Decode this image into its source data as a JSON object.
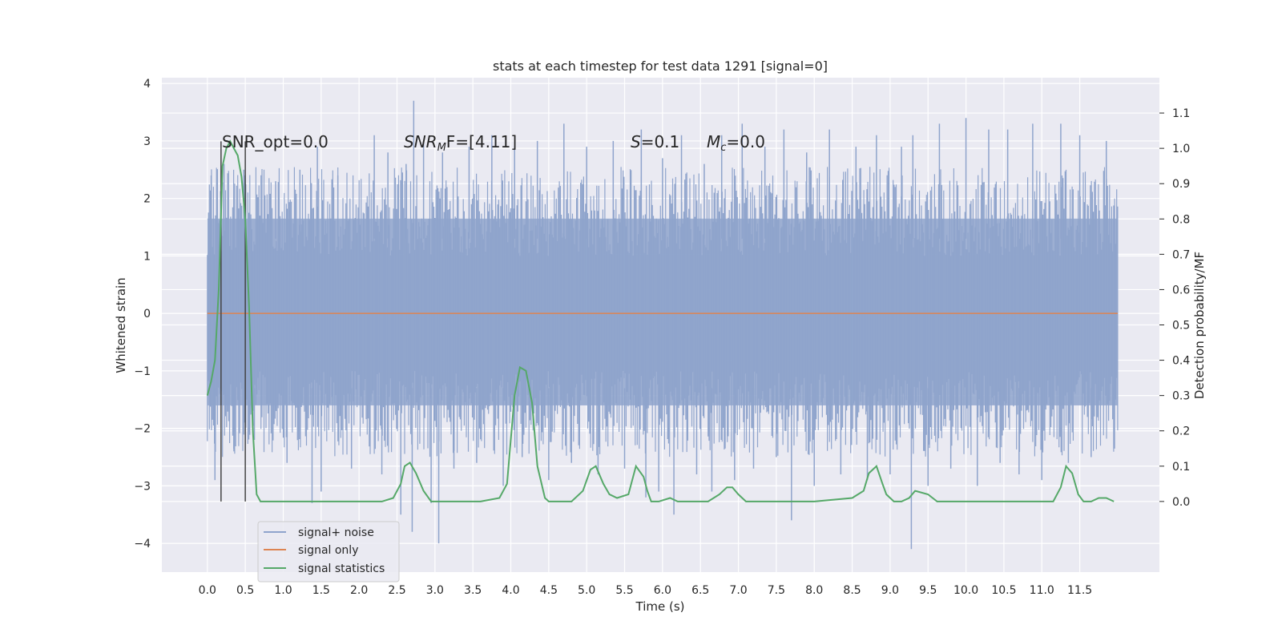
{
  "chart_data": {
    "type": "line",
    "title": "stats at each timestep for test data 1291 [signal=0]",
    "xlabel": "Time (s)",
    "ylabel": "Whitened strain",
    "ylabel_right": "Detection probability/MF",
    "xlim": [
      -0.6,
      12.55
    ],
    "ylim": [
      -4.5,
      4.1
    ],
    "ylim_right": [
      -0.2,
      1.2
    ],
    "x_ticks": [
      "0.0",
      "0.5",
      "1.0",
      "1.5",
      "2.0",
      "2.5",
      "3.0",
      "3.5",
      "4.0",
      "4.5",
      "5.0",
      "5.5",
      "6.0",
      "6.5",
      "7.0",
      "7.5",
      "8.0",
      "8.5",
      "9.0",
      "9.5",
      "10.0",
      "10.5",
      "11.0",
      "11.5"
    ],
    "y_ticks": [
      "4",
      "3",
      "2",
      "1",
      "0",
      "−1",
      "−2",
      "−3",
      "−4"
    ],
    "y_ticks_right": [
      "1.1",
      "1.0",
      "0.9",
      "0.8",
      "0.7",
      "0.6",
      "0.5",
      "0.4",
      "0.3",
      "0.2",
      "0.1",
      "0.0"
    ],
    "grid": true,
    "legend_position": "lower-left",
    "annotations": {
      "snr_opt": "SNR_opt=0.0",
      "snr_mf_main": "SNR",
      "snr_mf_sub": "M",
      "snr_mf_rest": "F=[4.11]",
      "s_main": "S",
      "s_rest": "=0.1",
      "mc_main": "M",
      "mc_sub": "c",
      "mc_rest": "=0.0"
    },
    "vertical_markers": [
      0.18,
      0.5
    ],
    "series": [
      {
        "name": "signal+ noise",
        "color": "#8fa4cc",
        "x_range": [
          0.0,
          12.0
        ],
        "band_typical": [
          -1.6,
          1.65
        ],
        "excursions": [
          [
            0.05,
            2.4
          ],
          [
            0.1,
            -2.9
          ],
          [
            0.22,
            2.6
          ],
          [
            0.35,
            -2.4
          ],
          [
            0.48,
            2.5
          ],
          [
            0.62,
            -2.2
          ],
          [
            0.9,
            2.3
          ],
          [
            1.05,
            -2.6
          ],
          [
            1.22,
            2.5
          ],
          [
            1.38,
            -3.3
          ],
          [
            1.45,
            2.9
          ],
          [
            1.5,
            -3.1
          ],
          [
            1.72,
            2.4
          ],
          [
            1.9,
            -2.7
          ],
          [
            2.2,
            3.1
          ],
          [
            2.3,
            -2.8
          ],
          [
            2.38,
            2.8
          ],
          [
            2.55,
            -3.5
          ],
          [
            2.62,
            2.6
          ],
          [
            2.7,
            -3.8
          ],
          [
            2.72,
            3.7
          ],
          [
            2.85,
            3.0
          ],
          [
            2.95,
            -3.3
          ],
          [
            3.05,
            -4.0
          ],
          [
            3.1,
            2.8
          ],
          [
            3.25,
            -2.7
          ],
          [
            3.45,
            2.9
          ],
          [
            3.55,
            -2.6
          ],
          [
            3.75,
            3.1
          ],
          [
            3.9,
            -3.0
          ],
          [
            4.05,
            2.9
          ],
          [
            4.15,
            -2.5
          ],
          [
            4.35,
            3.0
          ],
          [
            4.5,
            -2.9
          ],
          [
            4.7,
            3.3
          ],
          [
            4.8,
            -2.6
          ],
          [
            5.0,
            2.9
          ],
          [
            5.15,
            -2.8
          ],
          [
            5.35,
            3.0
          ],
          [
            5.5,
            -2.7
          ],
          [
            5.72,
            3.2
          ],
          [
            5.78,
            -3.2
          ],
          [
            5.95,
            -3.1
          ],
          [
            6.0,
            2.7
          ],
          [
            6.15,
            -3.5
          ],
          [
            6.25,
            3.1
          ],
          [
            6.45,
            -2.8
          ],
          [
            6.55,
            2.6
          ],
          [
            6.65,
            -3.1
          ],
          [
            6.78,
            3.1
          ],
          [
            6.95,
            -2.9
          ],
          [
            7.05,
            3.3
          ],
          [
            7.2,
            -2.7
          ],
          [
            7.35,
            2.9
          ],
          [
            7.5,
            -2.5
          ],
          [
            7.6,
            3.2
          ],
          [
            7.7,
            -3.6
          ],
          [
            7.9,
            2.8
          ],
          [
            8.0,
            -3.0
          ],
          [
            8.2,
            3.2
          ],
          [
            8.35,
            -2.8
          ],
          [
            8.55,
            2.9
          ],
          [
            8.7,
            -2.9
          ],
          [
            8.82,
            3.1
          ],
          [
            9.0,
            -2.8
          ],
          [
            9.15,
            2.9
          ],
          [
            9.28,
            -4.1
          ],
          [
            9.3,
            3.1
          ],
          [
            9.5,
            -3.0
          ],
          [
            9.65,
            3.3
          ],
          [
            9.8,
            -2.7
          ],
          [
            10.0,
            3.4
          ],
          [
            10.15,
            -3.0
          ],
          [
            10.3,
            3.2
          ],
          [
            10.45,
            -2.6
          ],
          [
            10.55,
            3.2
          ],
          [
            10.7,
            -2.8
          ],
          [
            10.88,
            3.3
          ],
          [
            11.0,
            -2.9
          ],
          [
            11.25,
            3.3
          ],
          [
            11.35,
            -2.6
          ],
          [
            11.5,
            3.1
          ],
          [
            11.65,
            -2.5
          ],
          [
            11.85,
            3.0
          ],
          [
            11.95,
            -2.3
          ]
        ]
      },
      {
        "name": "signal only",
        "color": "#dd8452",
        "x": [
          0.0,
          12.0
        ],
        "y": [
          0.0,
          0.0
        ]
      },
      {
        "name": "signal statistics",
        "color": "#55a868",
        "axis": "right",
        "x": [
          0.0,
          0.05,
          0.1,
          0.15,
          0.2,
          0.25,
          0.3,
          0.35,
          0.4,
          0.45,
          0.5,
          0.55,
          0.6,
          0.65,
          0.7,
          0.75,
          0.85,
          1.0,
          1.5,
          2.0,
          2.3,
          2.45,
          2.55,
          2.6,
          2.67,
          2.75,
          2.85,
          2.95,
          3.05,
          3.3,
          3.6,
          3.85,
          3.95,
          4.05,
          4.12,
          4.2,
          4.28,
          4.35,
          4.45,
          4.5,
          4.6,
          4.8,
          4.95,
          5.05,
          5.12,
          5.22,
          5.3,
          5.4,
          5.55,
          5.65,
          5.75,
          5.8,
          5.85,
          5.95,
          6.1,
          6.2,
          6.35,
          6.6,
          6.75,
          6.85,
          6.92,
          7.0,
          7.1,
          7.2,
          7.4,
          8.0,
          8.5,
          8.65,
          8.72,
          8.82,
          8.9,
          8.95,
          9.05,
          9.15,
          9.25,
          9.33,
          9.5,
          9.62,
          9.75,
          10.0,
          10.5,
          11.0,
          11.15,
          11.25,
          11.32,
          11.4,
          11.48,
          11.55,
          11.65,
          11.75,
          11.85,
          11.95
        ],
        "y": [
          0.3,
          0.34,
          0.4,
          0.6,
          0.95,
          1.0,
          1.02,
          1.0,
          0.98,
          0.92,
          0.8,
          0.55,
          0.2,
          0.02,
          0.0,
          0.0,
          0.0,
          0.0,
          0.0,
          0.0,
          0.0,
          0.01,
          0.05,
          0.1,
          0.11,
          0.08,
          0.03,
          0.0,
          0.0,
          0.0,
          0.0,
          0.01,
          0.05,
          0.3,
          0.38,
          0.37,
          0.28,
          0.1,
          0.01,
          0.0,
          0.0,
          0.0,
          0.03,
          0.09,
          0.1,
          0.05,
          0.02,
          0.01,
          0.02,
          0.1,
          0.07,
          0.03,
          0.0,
          0.0,
          0.01,
          0.0,
          0.0,
          0.0,
          0.02,
          0.04,
          0.04,
          0.02,
          0.0,
          0.0,
          0.0,
          0.0,
          0.01,
          0.03,
          0.08,
          0.1,
          0.05,
          0.02,
          0.0,
          0.0,
          0.01,
          0.03,
          0.02,
          0.0,
          0.0,
          0.0,
          0.0,
          0.0,
          0.0,
          0.04,
          0.1,
          0.08,
          0.02,
          0.0,
          0.0,
          0.01,
          0.01,
          0.0
        ]
      }
    ]
  }
}
